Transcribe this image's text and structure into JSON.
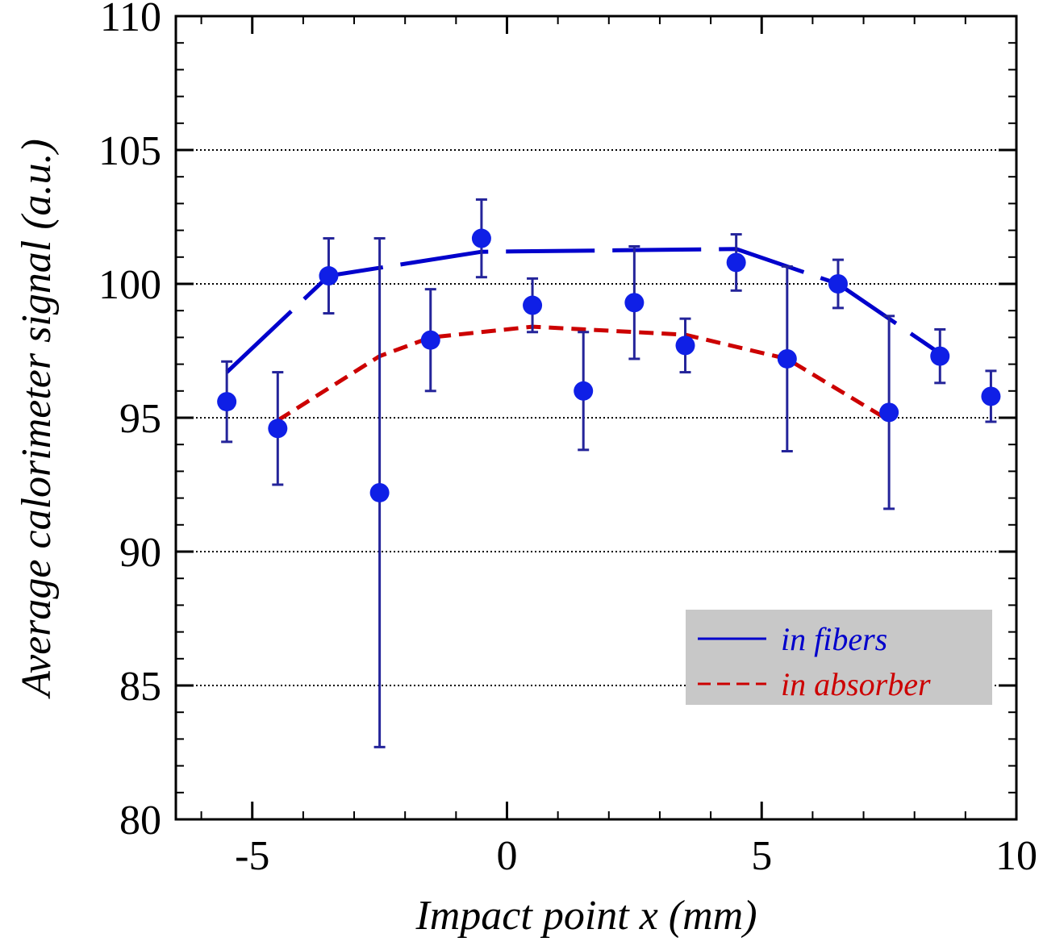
{
  "chart_data": {
    "type": "scatter",
    "xlabel": "Impact point x (mm)",
    "ylabel": "Average calorimeter signal (a.u.)",
    "xlim": [
      -6.5,
      10
    ],
    "ylim": [
      80,
      110
    ],
    "x_ticks": [
      "-5",
      "0",
      "5",
      "10"
    ],
    "y_ticks": [
      "80",
      "85",
      "90",
      "95",
      "100",
      "105",
      "110"
    ],
    "grid": "horizontal dotted",
    "legend_position": "bottom-right",
    "legend": [
      {
        "label": "in fibers",
        "color": "#0000cc",
        "style": "solid"
      },
      {
        "label": "in absorber",
        "color": "#cc0000",
        "style": "dashed"
      }
    ],
    "points": [
      {
        "x": -5.5,
        "y": 95.6,
        "err": 1.5
      },
      {
        "x": -4.5,
        "y": 94.6,
        "err": 2.1
      },
      {
        "x": -3.5,
        "y": 100.3,
        "err": 1.4
      },
      {
        "x": -2.5,
        "y": 92.2,
        "err": 9.5
      },
      {
        "x": -1.5,
        "y": 97.9,
        "err": 1.9
      },
      {
        "x": -0.5,
        "y": 101.7,
        "err": 1.45
      },
      {
        "x": 0.5,
        "y": 99.2,
        "err": 1.0
      },
      {
        "x": 1.5,
        "y": 96.0,
        "err": 2.2
      },
      {
        "x": 2.5,
        "y": 99.3,
        "err": 2.1
      },
      {
        "x": 3.5,
        "y": 97.7,
        "err": 1.0
      },
      {
        "x": 4.5,
        "y": 100.8,
        "err": 1.05
      },
      {
        "x": 5.5,
        "y": 97.2,
        "err": 3.45
      },
      {
        "x": 6.5,
        "y": 100.0,
        "err": 0.9
      },
      {
        "x": 7.5,
        "y": 95.2,
        "err": 3.6
      },
      {
        "x": 8.5,
        "y": 97.3,
        "err": 1.0
      },
      {
        "x": 9.5,
        "y": 95.8,
        "err": 0.95
      }
    ],
    "series": [
      {
        "name": "in fibers",
        "color": "#0000cc",
        "x": [
          -5.5,
          -3.5,
          -0.5,
          4.5,
          6.5,
          8.5
        ],
        "values": [
          96.7,
          100.3,
          101.2,
          101.3,
          100.0,
          97.4
        ]
      },
      {
        "name": "in absorber",
        "color": "#cc0000",
        "x": [
          -4.5,
          -2.5,
          -1.5,
          0.5,
          1.5,
          3.5,
          5.5,
          7.5
        ],
        "values": [
          94.9,
          97.3,
          98.0,
          98.4,
          98.3,
          98.1,
          97.2,
          94.9
        ]
      }
    ]
  }
}
